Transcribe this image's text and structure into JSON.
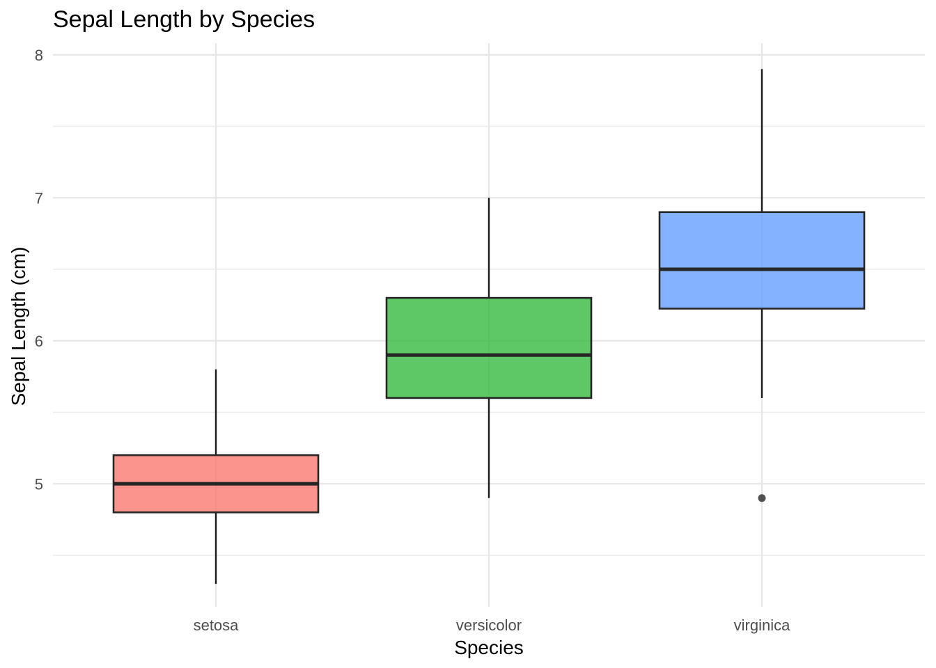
{
  "chart_data": {
    "type": "box",
    "title": "Sepal Length by Species",
    "xlabel": "Species",
    "ylabel": "Sepal Length (cm)",
    "ylim": [
      4.2,
      8.08
    ],
    "y_ticks": [
      5,
      6,
      7,
      8
    ],
    "y_minor_ticks": [
      4.5,
      5.5,
      6.5,
      7.5
    ],
    "grid": true,
    "legend": "none",
    "categories": [
      "setosa",
      "versicolor",
      "virginica"
    ],
    "boxes": [
      {
        "category": "setosa",
        "min": 4.3,
        "q1": 4.8,
        "median": 5.0,
        "q3": 5.2,
        "max": 5.8,
        "outliers": [],
        "color": "#F8766D"
      },
      {
        "category": "versicolor",
        "min": 4.9,
        "q1": 5.6,
        "median": 5.9,
        "q3": 6.3,
        "max": 7.0,
        "outliers": [],
        "color": "#2FB83A"
      },
      {
        "category": "virginica",
        "min": 5.6,
        "q1": 6.225,
        "median": 6.5,
        "q3": 6.9,
        "max": 7.9,
        "outliers": [
          4.9
        ],
        "color": "#619CFF"
      }
    ]
  }
}
